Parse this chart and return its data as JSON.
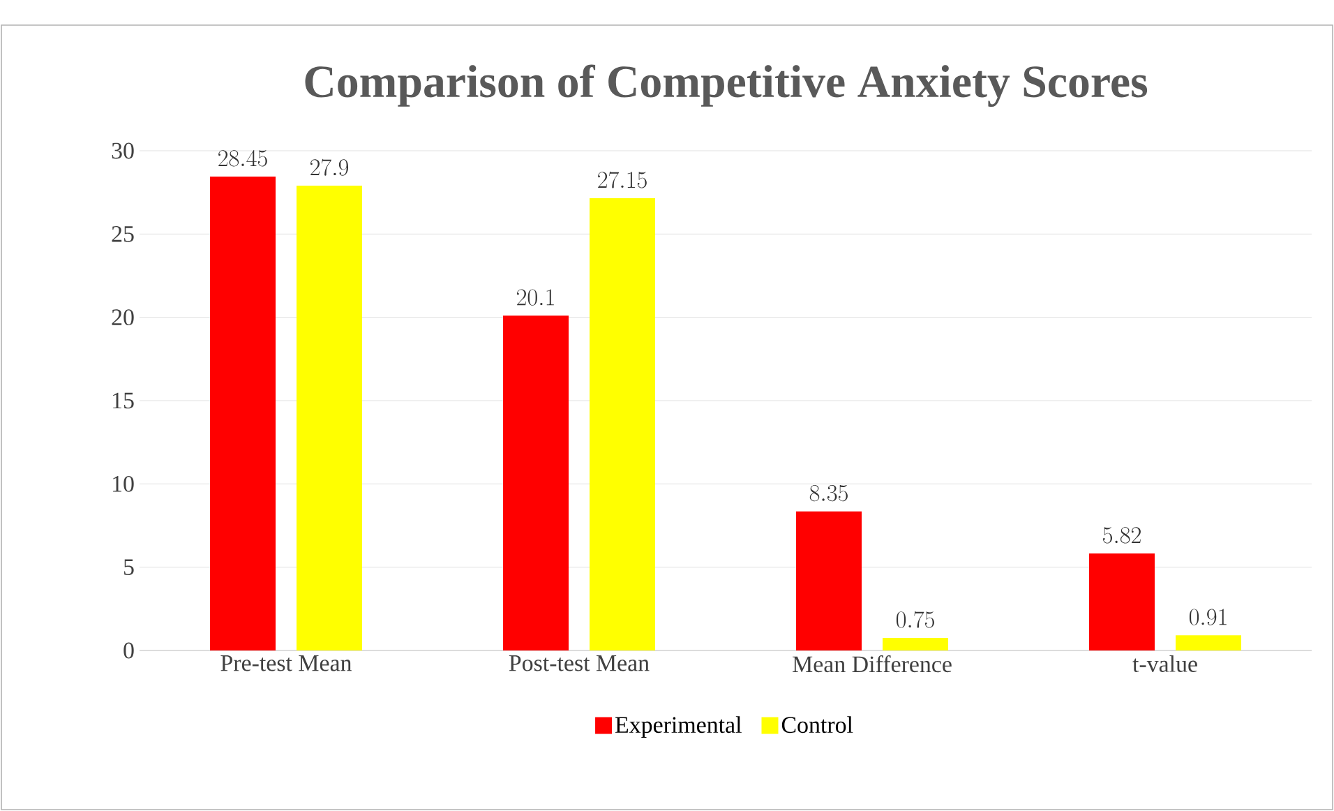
{
  "chart_data": {
    "type": "bar",
    "title": "Comparison of Competitive Anxiety Scores",
    "categories": [
      "Pre-test Mean",
      "Post-test Mean",
      "Mean Difference",
      "t-value"
    ],
    "series": [
      {
        "name": "Experimental",
        "color": "#ff0000",
        "values": [
          28.45,
          20.1,
          8.35,
          5.82
        ]
      },
      {
        "name": "Control",
        "color": "#ffff00",
        "values": [
          27.9,
          27.15,
          0.75,
          0.91
        ]
      }
    ],
    "ylim": [
      0,
      30
    ],
    "yticks": [
      0,
      5,
      10,
      15,
      20,
      25,
      30
    ],
    "grid": "y",
    "legend": "bottom",
    "data_labels": true
  }
}
